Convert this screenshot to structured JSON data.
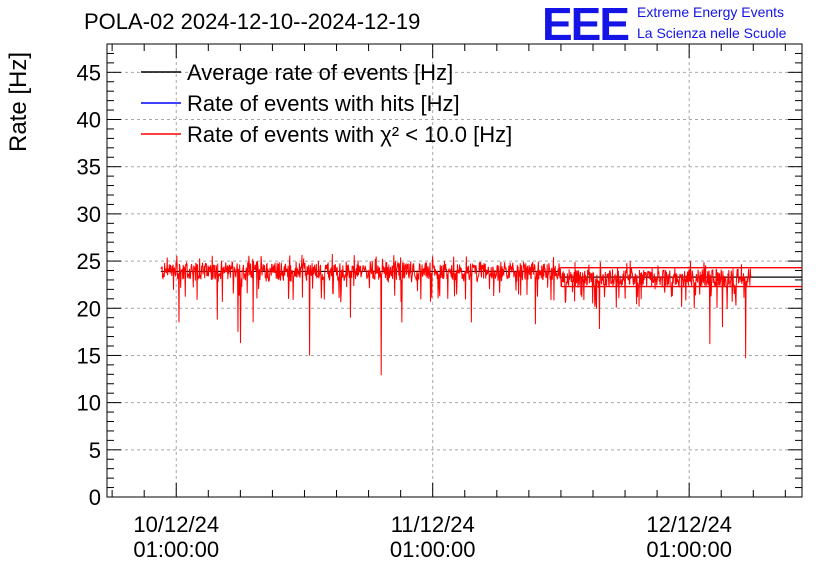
{
  "header": {
    "title": "POLA-02 2024-12-10--2024-12-19",
    "logo_text": "EEE",
    "logo_line1": "Extreme Energy Events",
    "logo_line2": "La Scienza nelle Scuole"
  },
  "chart_data": {
    "type": "line",
    "title": "POLA-02 2024-12-10--2024-12-19",
    "xlabel": "",
    "ylabel": "Rate [Hz]",
    "ylim": [
      0,
      48
    ],
    "xlim_days": [
      -0.27,
      2.44
    ],
    "grid": true,
    "legend_position": "top-left",
    "yticks": [
      0,
      5,
      10,
      15,
      20,
      25,
      30,
      35,
      40,
      45
    ],
    "xticks": [
      {
        "day": 0,
        "label_date": "10/12/24",
        "label_time": "01:00:00"
      },
      {
        "day": 1,
        "label_date": "11/12/24",
        "label_time": "01:00:00"
      },
      {
        "day": 2,
        "label_date": "12/12/24",
        "label_time": "01:00:00"
      }
    ],
    "x_units": "days since 10/12/24 01:00:00",
    "data_span_days": [
      -0.06,
      2.24
    ],
    "series": [
      {
        "name": "Average rate of events [Hz]",
        "color": "#000000",
        "segments": [
          {
            "x": [
              -0.06,
              1.5
            ],
            "y": [
              23.9,
              23.9
            ]
          },
          {
            "x": [
              1.5,
              2.44
            ],
            "y": [
              23.3,
              23.3
            ]
          }
        ]
      },
      {
        "name": "Rate of events with hits [Hz]",
        "color": "#0000ff",
        "mean": 23.8
      },
      {
        "name": "Rate of events with χ² < 10.0 [Hz]",
        "color": "#ff0000",
        "mean_first": 23.9,
        "mean_second": 23.2,
        "noise_band": 1.2,
        "step_x": 1.5,
        "upper_line_after": 24.3,
        "lower_line_after": 22.3,
        "dips": [
          {
            "x": 0.01,
            "y": 18.5
          },
          {
            "x": 0.16,
            "y": 18.8
          },
          {
            "x": 0.24,
            "y": 17.5
          },
          {
            "x": 0.25,
            "y": 16.3
          },
          {
            "x": 0.3,
            "y": 18.5
          },
          {
            "x": 0.52,
            "y": 15.0
          },
          {
            "x": 0.68,
            "y": 19.0
          },
          {
            "x": 0.8,
            "y": 12.9
          },
          {
            "x": 0.88,
            "y": 18.5
          },
          {
            "x": 1.15,
            "y": 18.5
          },
          {
            "x": 1.4,
            "y": 18.3
          },
          {
            "x": 1.65,
            "y": 17.8
          },
          {
            "x": 2.08,
            "y": 16.2
          },
          {
            "x": 2.13,
            "y": 18.0
          },
          {
            "x": 2.22,
            "y": 14.7
          }
        ]
      }
    ]
  }
}
